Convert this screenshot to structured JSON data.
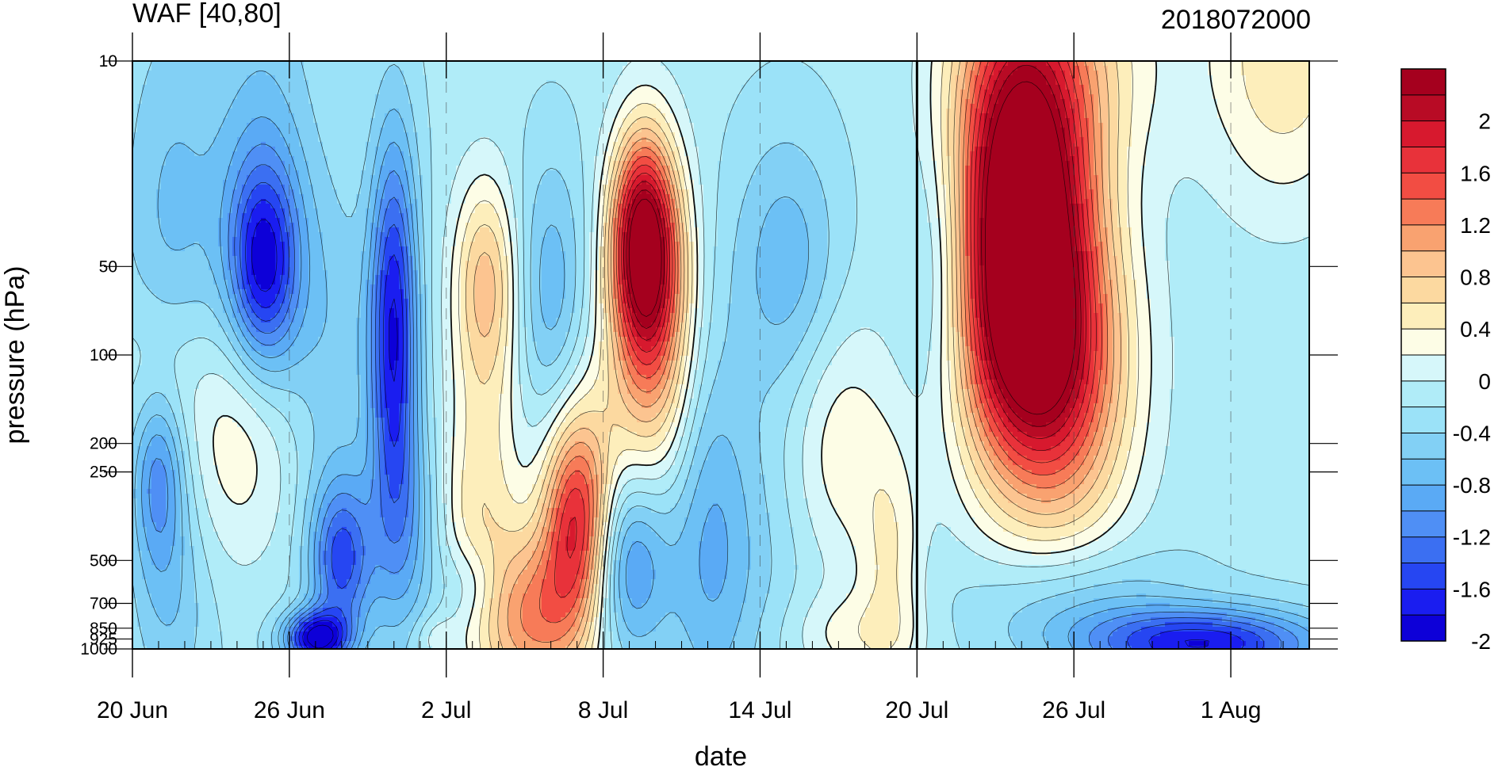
{
  "chart_data": {
    "type": "heatmap",
    "title": "WAF [40,80]",
    "title_right": "2018072000",
    "xlabel": "date",
    "ylabel": "pressure (hPa)",
    "x_ticks": [
      "20 Jun",
      "26 Jun",
      "2 Jul",
      "8 Jul",
      "14 Jul",
      "20 Jul",
      "26 Jul",
      "1 Aug"
    ],
    "x_range": [
      "2018-06-20",
      "2018-08-04"
    ],
    "y_scale": "log",
    "y_ticks": [
      "10",
      "50",
      "100",
      "200",
      "250",
      "500",
      "700",
      "850",
      "925",
      "1000"
    ],
    "y_range": [
      1000,
      10
    ],
    "reference_line": "20 Jul",
    "colorbar": {
      "labels": [
        "2",
        "1.6",
        "1.2",
        "0.8",
        "0.4",
        "0",
        "-0.4",
        "-0.8",
        "-1.2",
        "-1.6",
        "-2"
      ],
      "levels": [
        -2.2,
        -2.0,
        -1.8,
        -1.6,
        -1.4,
        -1.2,
        -1.0,
        -0.8,
        -0.6,
        -0.4,
        -0.2,
        0,
        0.2,
        0.4,
        0.6,
        0.8,
        1.0,
        1.2,
        1.4,
        1.6,
        1.8,
        2.0,
        2.2
      ],
      "colors": [
        "#0d00d8",
        "#1a1df0",
        "#2646f2",
        "#3b6ff2",
        "#4f8ff5",
        "#5aaaf5",
        "#6cc0f5",
        "#82d0f5",
        "#9be2f8",
        "#b0ecf8",
        "#d6f7fa",
        "#fdfde6",
        "#fdeebb",
        "#fcd9a0",
        "#fcc490",
        "#f9a270",
        "#f77b58",
        "#f24d43",
        "#e8323a",
        "#d7192e",
        "#b80b25",
        "#a5001e"
      ]
    },
    "features": [
      {
        "t": 1.0,
        "p": 250,
        "v": -0.9,
        "st": 1.0,
        "sl": 0.32
      },
      {
        "t": 1.5,
        "p": 40,
        "v": -0.5,
        "st": 2.0,
        "sl": 0.8
      },
      {
        "t": 1.5,
        "p": 700,
        "v": -0.4,
        "st": 1.5,
        "sl": 0.4
      },
      {
        "t": 1.0,
        "p": 120,
        "v": 0.4,
        "st": 1.5,
        "sl": 0.3
      },
      {
        "t": 4.2,
        "p": 180,
        "v": 0.7,
        "st": 2.5,
        "sl": 0.45
      },
      {
        "t": 5.0,
        "p": 50,
        "v": -1.4,
        "st": 1.3,
        "sl": 0.35
      },
      {
        "t": 5.0,
        "p": 30,
        "v": -0.5,
        "st": 2.0,
        "sl": 0.9
      },
      {
        "t": 7.5,
        "p": 100,
        "v": -0.4,
        "st": 2.0,
        "sl": 0.6
      },
      {
        "t": 8.0,
        "p": 500,
        "v": -1.3,
        "st": 1.2,
        "sl": 0.28
      },
      {
        "t": 7.0,
        "p": 920,
        "v": -1.8,
        "st": 1.2,
        "sl": 0.09
      },
      {
        "t": 10.0,
        "p": 80,
        "v": -1.6,
        "st": 0.9,
        "sl": 0.65
      },
      {
        "t": 10.5,
        "p": 400,
        "v": -0.6,
        "st": 1.3,
        "sl": 0.4
      },
      {
        "t": 11.5,
        "p": 920,
        "v": 0.3,
        "st": 0.8,
        "sl": 0.08
      },
      {
        "t": 13.5,
        "p": 55,
        "v": 0.9,
        "st": 1.2,
        "sl": 0.35
      },
      {
        "t": 13.5,
        "p": 180,
        "v": 0.4,
        "st": 1.5,
        "sl": 0.55
      },
      {
        "t": 13.0,
        "p": 600,
        "v": -0.4,
        "st": 1.2,
        "sl": 0.15
      },
      {
        "t": 13.0,
        "p": 400,
        "v": 0.4,
        "st": 1.5,
        "sl": 0.4
      },
      {
        "t": 16.0,
        "p": 60,
        "v": -0.6,
        "st": 1.3,
        "sl": 0.45
      },
      {
        "t": 17.0,
        "p": 350,
        "v": 1.8,
        "st": 1.3,
        "sl": 0.35
      },
      {
        "t": 16.0,
        "p": 780,
        "v": 1.0,
        "st": 1.8,
        "sl": 0.3
      },
      {
        "t": 14.5,
        "p": 800,
        "v": 0.6,
        "st": 1.5,
        "sl": 0.3
      },
      {
        "t": 19.5,
        "p": 40,
        "v": 2.2,
        "st": 1.2,
        "sl": 0.35
      },
      {
        "t": 20.0,
        "p": 70,
        "v": 1.2,
        "st": 1.5,
        "sl": 0.5
      },
      {
        "t": 19.0,
        "p": 150,
        "v": 0.4,
        "st": 2.0,
        "sl": 0.45
      },
      {
        "t": 19.0,
        "p": 500,
        "v": -1.0,
        "st": 1.5,
        "sl": 0.32
      },
      {
        "t": 22.0,
        "p": 400,
        "v": -0.5,
        "st": 1.5,
        "sl": 0.7
      },
      {
        "t": 25.0,
        "p": 50,
        "v": -0.6,
        "st": 2.0,
        "sl": 0.45
      },
      {
        "t": 23.5,
        "p": 500,
        "v": -0.3,
        "st": 2.5,
        "sl": 0.5
      },
      {
        "t": 27.0,
        "p": 200,
        "v": 0.5,
        "st": 2.0,
        "sl": 0.45
      },
      {
        "t": 27.5,
        "p": 900,
        "v": 0.4,
        "st": 2.5,
        "sl": 0.15
      },
      {
        "t": 29.0,
        "p": 500,
        "v": 0.5,
        "st": 1.2,
        "sl": 0.4
      },
      {
        "t": 31.0,
        "p": 50,
        "v": -0.6,
        "st": 1.5,
        "sl": 0.5
      },
      {
        "t": 34.0,
        "p": 30,
        "v": 3.2,
        "st": 2.7,
        "sl": 0.75
      },
      {
        "t": 35.0,
        "p": 100,
        "v": 1.4,
        "st": 3.0,
        "sl": 0.45
      },
      {
        "t": 36.0,
        "p": 250,
        "v": 0.4,
        "st": 2.5,
        "sl": 0.4
      },
      {
        "t": 37.0,
        "p": 10,
        "v": 0.4,
        "st": 3.0,
        "sl": 0.4
      },
      {
        "t": 44.0,
        "p": 10,
        "v": 0.7,
        "st": 3.0,
        "sl": 0.5
      },
      {
        "t": 41.0,
        "p": 960,
        "v": -1.6,
        "st": 4.5,
        "sl": 0.12
      },
      {
        "t": 36.0,
        "p": 700,
        "v": -0.5,
        "st": 4.0,
        "sl": 0.2
      }
    ]
  }
}
